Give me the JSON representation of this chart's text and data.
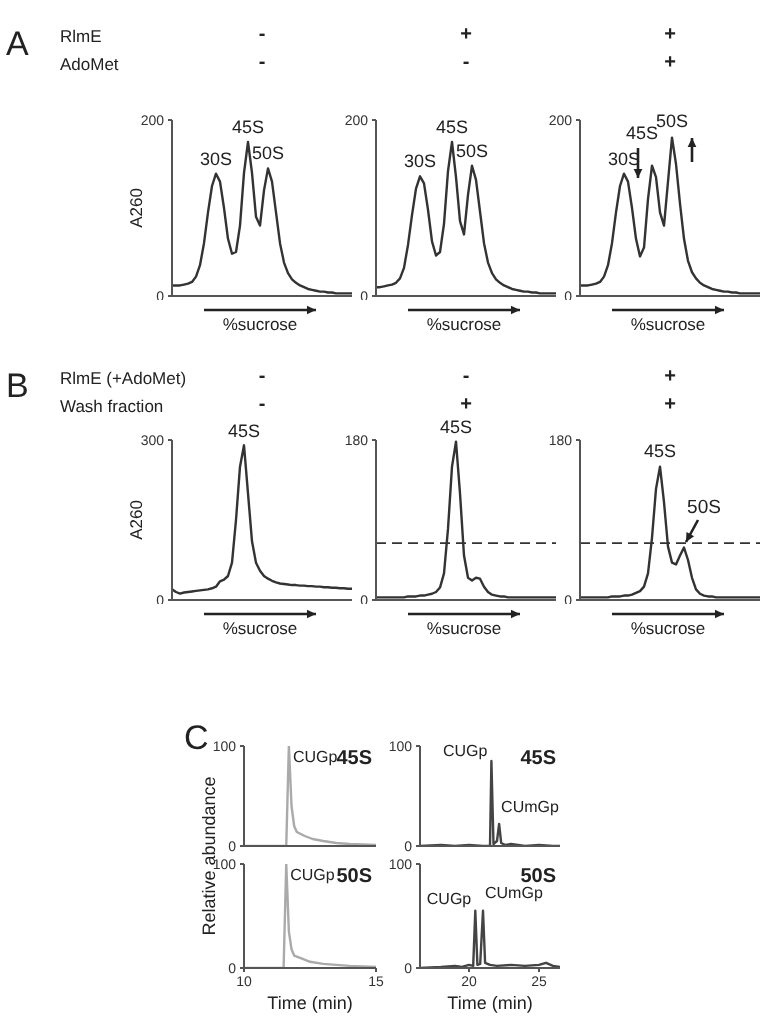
{
  "chart_data": [
    {
      "type": "line",
      "ylabel": "A260",
      "xlabel": "%sucrose",
      "categories": [
        null,
        null,
        null,
        null,
        null,
        null,
        null,
        null,
        null,
        null,
        null,
        null,
        null,
        null,
        null,
        null,
        null,
        null,
        null,
        null,
        null,
        null,
        null,
        null,
        null,
        null,
        null,
        null,
        null,
        null,
        null,
        null,
        null,
        null,
        null,
        null,
        null,
        null,
        null,
        null,
        null,
        null,
        null,
        null,
        null,
        null
      ],
      "values": [
        12,
        12,
        12,
        13,
        14,
        16,
        22,
        35,
        60,
        95,
        125,
        139,
        130,
        100,
        65,
        48,
        50,
        80,
        140,
        175,
        140,
        90,
        80,
        120,
        145,
        130,
        95,
        60,
        38,
        26,
        19,
        15,
        12,
        10,
        8,
        7,
        6,
        5,
        5,
        4,
        4,
        3,
        3,
        3,
        3,
        3
      ],
      "color": "#333333",
      "ylim": [
        0,
        200
      ],
      "yticks": [
        0,
        200
      ],
      "tick_labels": "y",
      "annotations": [
        "A",
        "RlmE",
        "AdoMet",
        "-",
        "-",
        {
          "text": "30S",
          "y": 139
        },
        {
          "text": "45S",
          "y": 175
        },
        {
          "text": "50S",
          "y": 145
        }
      ]
    },
    {
      "type": "line",
      "xlabel": "%sucrose",
      "categories": [
        null,
        null,
        null,
        null,
        null,
        null,
        null,
        null,
        null,
        null,
        null,
        null,
        null,
        null,
        null,
        null,
        null,
        null,
        null,
        null,
        null,
        null,
        null,
        null,
        null,
        null,
        null,
        null,
        null,
        null,
        null,
        null,
        null,
        null,
        null,
        null,
        null,
        null,
        null,
        null,
        null,
        null,
        null,
        null,
        null,
        null
      ],
      "values": [
        10,
        10,
        11,
        12,
        13,
        15,
        20,
        32,
        58,
        92,
        122,
        136,
        128,
        98,
        62,
        46,
        50,
        82,
        142,
        175,
        135,
        85,
        70,
        115,
        148,
        132,
        96,
        60,
        38,
        26,
        19,
        15,
        12,
        10,
        8,
        7,
        6,
        5,
        5,
        4,
        4,
        3,
        3,
        3,
        3,
        3
      ],
      "color": "#333333",
      "ylim": [
        0,
        200
      ],
      "yticks": [
        0,
        200
      ],
      "tick_labels": "y",
      "annotations": [
        "+",
        "-",
        {
          "text": "30S",
          "y": 136
        },
        {
          "text": "45S",
          "y": 175
        },
        {
          "text": "50S",
          "y": 148
        }
      ]
    },
    {
      "type": "line",
      "xlabel": "%sucrose",
      "categories": [
        null,
        null,
        null,
        null,
        null,
        null,
        null,
        null,
        null,
        null,
        null,
        null,
        null,
        null,
        null,
        null,
        null,
        null,
        null,
        null,
        null,
        null,
        null,
        null,
        null,
        null,
        null,
        null,
        null,
        null,
        null,
        null,
        null,
        null,
        null,
        null,
        null,
        null,
        null,
        null,
        null,
        null,
        null,
        null,
        null,
        null
      ],
      "values": [
        12,
        12,
        12,
        13,
        14,
        16,
        22,
        35,
        60,
        95,
        125,
        139,
        130,
        100,
        65,
        45,
        55,
        110,
        148,
        135,
        95,
        80,
        130,
        180,
        150,
        105,
        65,
        40,
        27,
        20,
        15,
        12,
        10,
        8,
        7,
        6,
        5,
        5,
        4,
        4,
        3,
        3,
        3,
        3,
        3,
        3
      ],
      "color": "#333333",
      "ylim": [
        0,
        200
      ],
      "yticks": [
        0,
        200
      ],
      "tick_labels": "y",
      "annotations": [
        "+",
        "+",
        {
          "text": "30S",
          "y": 139
        },
        {
          "text": "45S",
          "y": 148
        },
        {
          "text": "50S",
          "y": 180
        }
      ]
    },
    {
      "type": "line",
      "ylabel": "A260",
      "xlabel": "%sucrose",
      "categories": [
        null,
        null,
        null,
        null,
        null,
        null,
        null,
        null,
        null,
        null,
        null,
        null,
        null,
        null,
        null,
        null,
        null,
        null,
        null,
        null,
        null,
        null,
        null,
        null,
        null,
        null,
        null,
        null,
        null,
        null,
        null,
        null,
        null,
        null,
        null,
        null,
        null,
        null,
        null,
        null,
        null,
        null,
        null,
        null,
        null,
        null
      ],
      "values": [
        20,
        15,
        12,
        14,
        15,
        16,
        17,
        18,
        19,
        20,
        22,
        25,
        35,
        38,
        45,
        70,
        150,
        250,
        290,
        200,
        110,
        70,
        55,
        45,
        40,
        36,
        33,
        31,
        30,
        29,
        28,
        28,
        27,
        27,
        26,
        26,
        25,
        25,
        24,
        24,
        23,
        23,
        22,
        22,
        21,
        21
      ],
      "color": "#333333",
      "ylim": [
        0,
        300
      ],
      "yticks": [
        0,
        300
      ],
      "tick_labels": "y",
      "annotations": [
        "B",
        "RlmE (+AdoMet)",
        "Wash fraction",
        "-",
        "-",
        {
          "text": "45S",
          "y": 290
        }
      ]
    },
    {
      "type": "line",
      "xlabel": "%sucrose",
      "categories": [
        null,
        null,
        null,
        null,
        null,
        null,
        null,
        null,
        null,
        null,
        null,
        null,
        null,
        null,
        null,
        null,
        null,
        null,
        null,
        null,
        null,
        null,
        null,
        null,
        null,
        null,
        null,
        null,
        null,
        null,
        null,
        null,
        null,
        null,
        null,
        null,
        null,
        null,
        null,
        null,
        null,
        null,
        null,
        null,
        null,
        null
      ],
      "values": [
        3,
        3,
        3,
        3,
        3,
        3,
        3,
        3,
        4,
        4,
        4,
        5,
        5,
        6,
        7,
        9,
        14,
        30,
        80,
        150,
        178,
        120,
        50,
        25,
        22,
        25,
        24,
        15,
        9,
        6,
        5,
        4,
        4,
        3,
        3,
        3,
        3,
        3,
        3,
        3,
        3,
        3,
        3,
        3,
        3,
        3
      ],
      "color": "#333333",
      "ylim": [
        0,
        180
      ],
      "yticks": [
        0,
        180
      ],
      "tick_labels": "y",
      "ref_lines": [
        {
          "axis": "y",
          "value": 64,
          "color": "#333333",
          "line_style": "dashed"
        }
      ],
      "annotations": [
        "-",
        "+",
        {
          "text": "45S",
          "y": 178
        }
      ]
    },
    {
      "type": "line",
      "xlabel": "%sucrose",
      "categories": [
        null,
        null,
        null,
        null,
        null,
        null,
        null,
        null,
        null,
        null,
        null,
        null,
        null,
        null,
        null,
        null,
        null,
        null,
        null,
        null,
        null,
        null,
        null,
        null,
        null,
        null,
        null,
        null,
        null,
        null,
        null,
        null,
        null,
        null,
        null,
        null,
        null,
        null,
        null,
        null,
        null,
        null,
        null,
        null,
        null,
        null
      ],
      "values": [
        3,
        3,
        3,
        3,
        3,
        3,
        3,
        3,
        4,
        4,
        4,
        5,
        5,
        6,
        8,
        10,
        15,
        30,
        70,
        125,
        150,
        110,
        60,
        42,
        40,
        50,
        59,
        45,
        25,
        12,
        7,
        5,
        4,
        4,
        3,
        3,
        3,
        3,
        3,
        3,
        3,
        3,
        3,
        3,
        3,
        3
      ],
      "color": "#333333",
      "ylim": [
        0,
        180
      ],
      "yticks": [
        0,
        180
      ],
      "tick_labels": "y",
      "ref_lines": [
        {
          "axis": "y",
          "value": 64,
          "color": "#333333",
          "line_style": "dashed"
        }
      ],
      "annotations": [
        "+",
        "+",
        {
          "text": "45S",
          "y": 150
        },
        {
          "text": "50S",
          "y": 59
        }
      ]
    },
    {
      "type": "line",
      "title": "45S",
      "ylabel": "Relative abundance",
      "x": [
        10,
        11.6,
        11.7,
        11.8,
        11.9,
        12,
        12.3,
        12.6,
        13,
        13.5,
        14,
        15
      ],
      "values": [
        0,
        0,
        100,
        40,
        20,
        14,
        10,
        7,
        5,
        3,
        2,
        1
      ],
      "color": "#aaaaaa",
      "xlim": [
        10,
        15
      ],
      "xticks": [
        10,
        15
      ],
      "ylim": [
        0,
        100
      ],
      "yticks": [
        0,
        100
      ],
      "tick_labels": "y",
      "annotations": [
        "C",
        {
          "text": "CUGp",
          "x": 11.7,
          "y": 100
        }
      ]
    },
    {
      "type": "line",
      "title": "50S",
      "xlabel": "Time (min)",
      "x": [
        10,
        11.5,
        11.6,
        11.7,
        11.8,
        11.9,
        12.2,
        12.5,
        13,
        13.5,
        14,
        15
      ],
      "values": [
        0,
        0,
        100,
        35,
        18,
        12,
        9,
        6,
        4,
        3,
        2,
        1
      ],
      "color": "#aaaaaa",
      "xlim": [
        10,
        15
      ],
      "xticks": [
        10,
        15
      ],
      "ylim": [
        0,
        100
      ],
      "yticks": [
        0,
        100
      ],
      "annotations": [
        {
          "text": "CUGp",
          "x": 11.6,
          "y": 100
        }
      ]
    },
    {
      "type": "line",
      "title": "45S",
      "x": [
        16.5,
        18,
        19,
        20,
        21,
        21.5,
        21.6,
        21.75,
        22,
        22.15,
        22.3,
        22.6,
        23,
        24,
        25,
        26,
        26.5
      ],
      "values": [
        0,
        1,
        0,
        1,
        0,
        0,
        85,
        2,
        5,
        22,
        3,
        1,
        2,
        0,
        1,
        0,
        0
      ],
      "color": "#444444",
      "xlim": [
        16.5,
        26.5
      ],
      "xticks": [
        20,
        25
      ],
      "ylim": [
        0,
        100
      ],
      "yticks": [
        0,
        100
      ],
      "tick_labels": "y",
      "annotations": [
        {
          "text": "CUGp",
          "x": 21.6,
          "y": 85
        },
        {
          "text": "CUmGp",
          "x": 22.15,
          "y": 22
        }
      ]
    },
    {
      "type": "line",
      "title": "50S",
      "xlabel": "Time (min)",
      "x": [
        16.5,
        18,
        19,
        19.5,
        20,
        20.3,
        20.45,
        20.6,
        20.8,
        21,
        21.15,
        21.5,
        22,
        23,
        24,
        25,
        25.5,
        26,
        26.5
      ],
      "values": [
        0,
        1,
        2,
        1,
        3,
        2,
        55,
        3,
        4,
        55,
        5,
        3,
        2,
        3,
        2,
        3,
        5,
        2,
        1
      ],
      "color": "#444444",
      "xlim": [
        16.5,
        26.5
      ],
      "xticks": [
        20,
        25
      ],
      "ylim": [
        0,
        100
      ],
      "yticks": [
        0,
        100
      ],
      "annotations": [
        {
          "text": "CUGp",
          "x": 20.45,
          "y": 55
        },
        {
          "text": "CUmGp",
          "x": 21,
          "y": 55
        }
      ]
    }
  ]
}
